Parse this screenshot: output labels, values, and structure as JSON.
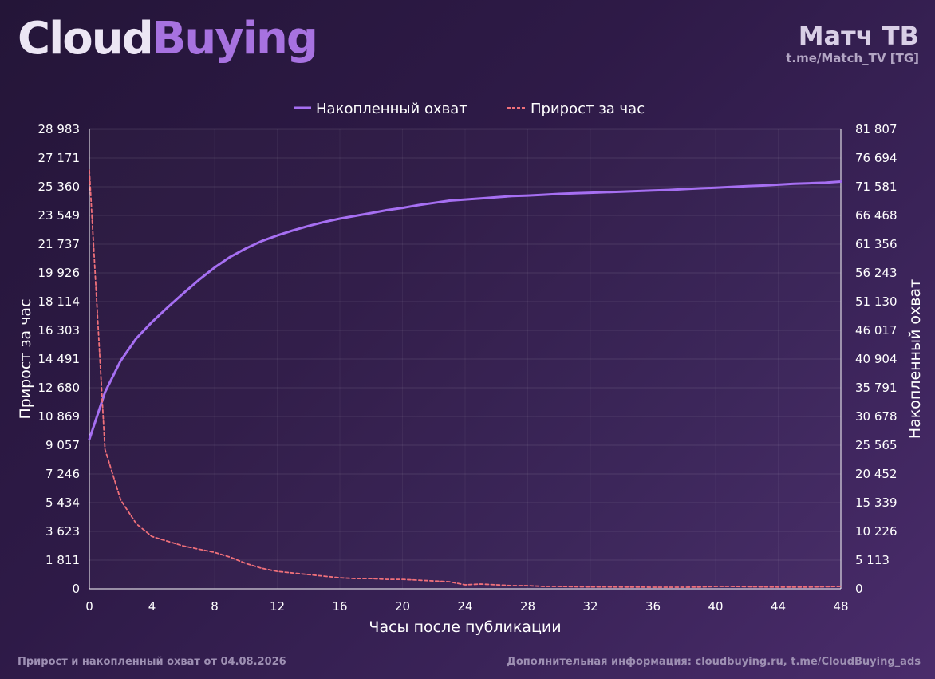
{
  "header": {
    "logo_part1": "Cloud",
    "logo_part2": "Buying",
    "channel_name": "Матч ТВ",
    "channel_link": "t.me/Match_TV [TG]"
  },
  "footer": {
    "left": "Прирост и накопленный охват от 04.08.2026",
    "right": "Дополнительная информация: cloudbuying.ru, t.me/CloudBuying_ads"
  },
  "chart_data": {
    "type": "line",
    "xlabel": "Часы после публикации",
    "ylabel_left": "Прирост за час",
    "ylabel_right": "Накопленный охват",
    "xlim": [
      0,
      48
    ],
    "x_ticks": [
      "0",
      "4",
      "8",
      "12",
      "16",
      "20",
      "24",
      "28",
      "32",
      "36",
      "40",
      "44",
      "48"
    ],
    "ylim_left": [
      0,
      28983
    ],
    "y_ticks_left": [
      "0",
      "1 811",
      "3 623",
      "5 434",
      "7 246",
      "9 057",
      "10 869",
      "12 680",
      "14 491",
      "16 303",
      "18 114",
      "19 926",
      "21 737",
      "23 549",
      "25 360",
      "27 171",
      "28 983"
    ],
    "ylim_right": [
      0,
      81807
    ],
    "y_ticks_right": [
      "0",
      "5 113",
      "10 226",
      "15 339",
      "20 452",
      "25 565",
      "30 678",
      "35 791",
      "40 904",
      "46 017",
      "51 130",
      "56 243",
      "61 356",
      "66 468",
      "71 581",
      "76 694",
      "81 807"
    ],
    "grid": true,
    "legend_position": "top-center",
    "series": [
      {
        "name": "Накопленный охват",
        "axis": "right",
        "style": "solid",
        "color": "#a66ff2",
        "x": [
          0,
          1,
          2,
          3,
          4,
          5,
          6,
          7,
          8,
          9,
          10,
          11,
          12,
          13,
          14,
          15,
          16,
          17,
          18,
          19,
          20,
          21,
          22,
          23,
          24,
          25,
          26,
          27,
          28,
          29,
          30,
          31,
          32,
          33,
          34,
          35,
          36,
          37,
          38,
          39,
          40,
          41,
          42,
          43,
          44,
          45,
          46,
          47,
          48
        ],
        "values": [
          26600,
          35000,
          40600,
          44600,
          47500,
          50100,
          52600,
          55000,
          57200,
          59100,
          60600,
          61900,
          62900,
          63800,
          64600,
          65300,
          65900,
          66400,
          66900,
          67400,
          67800,
          68300,
          68700,
          69100,
          69300,
          69500,
          69700,
          69900,
          70000,
          70150,
          70300,
          70400,
          70500,
          70600,
          70700,
          70800,
          70900,
          71000,
          71150,
          71300,
          71400,
          71550,
          71700,
          71800,
          71950,
          72100,
          72200,
          72300,
          72500
        ]
      },
      {
        "name": "Прирост за час",
        "axis": "left",
        "style": "dashed",
        "color": "#f0707a",
        "x": [
          0,
          1,
          2,
          3,
          4,
          5,
          6,
          7,
          8,
          9,
          10,
          11,
          12,
          13,
          14,
          15,
          16,
          17,
          18,
          19,
          20,
          21,
          22,
          23,
          24,
          25,
          26,
          27,
          28,
          29,
          30,
          31,
          32,
          33,
          34,
          35,
          36,
          37,
          38,
          39,
          40,
          41,
          42,
          43,
          44,
          45,
          46,
          47,
          48
        ],
        "values": [
          26400,
          8800,
          5600,
          4100,
          3300,
          3000,
          2700,
          2500,
          2300,
          2000,
          1600,
          1300,
          1100,
          1000,
          900,
          800,
          700,
          650,
          650,
          600,
          600,
          550,
          500,
          450,
          250,
          300,
          250,
          200,
          200,
          150,
          150,
          130,
          120,
          120,
          110,
          110,
          100,
          100,
          100,
          110,
          150,
          150,
          130,
          120,
          110,
          110,
          110,
          130,
          150
        ]
      }
    ]
  }
}
